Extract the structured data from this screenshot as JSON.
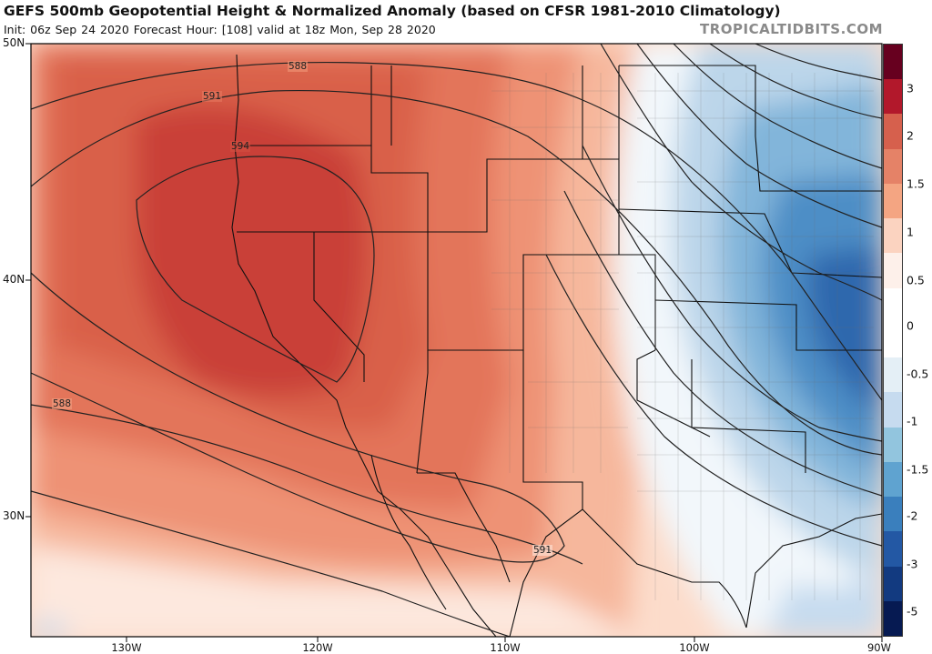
{
  "header": {
    "title": "GEFS 500mb Geopotential Height & Normalized Anomaly (based on CFSR 1981-2010 Climatology)",
    "subtitle": "Init: 06z Sep 24 2020   Forecast Hour: [108]   valid at 18z Mon, Sep 28 2020",
    "credit": "TROPICALTIDBITS.COM"
  },
  "axes": {
    "lat_labels": [
      "50N",
      "40N",
      "30N"
    ],
    "lon_labels": [
      "130W",
      "120W",
      "110W",
      "100W",
      "90W"
    ]
  },
  "contours": {
    "labels": [
      "588",
      "591",
      "594",
      "588",
      "591"
    ]
  },
  "colorbar": {
    "labels": [
      "3",
      "2",
      "1.5",
      "1",
      "0.5",
      "0",
      "-0.5",
      "-1",
      "-1.5",
      "-2",
      "-3",
      "-5"
    ],
    "colors": [
      "#67001f",
      "#b2182b",
      "#d6604d",
      "#e58267",
      "#f4a582",
      "#fbd3c0",
      "#fdf0ea",
      "#ffffff",
      "#ffffff",
      "#e4eff6",
      "#c6dbef",
      "#92c5de",
      "#5fa3d0",
      "#3a7fbd",
      "#2358a4",
      "#123a80",
      "#061a52"
    ]
  }
}
